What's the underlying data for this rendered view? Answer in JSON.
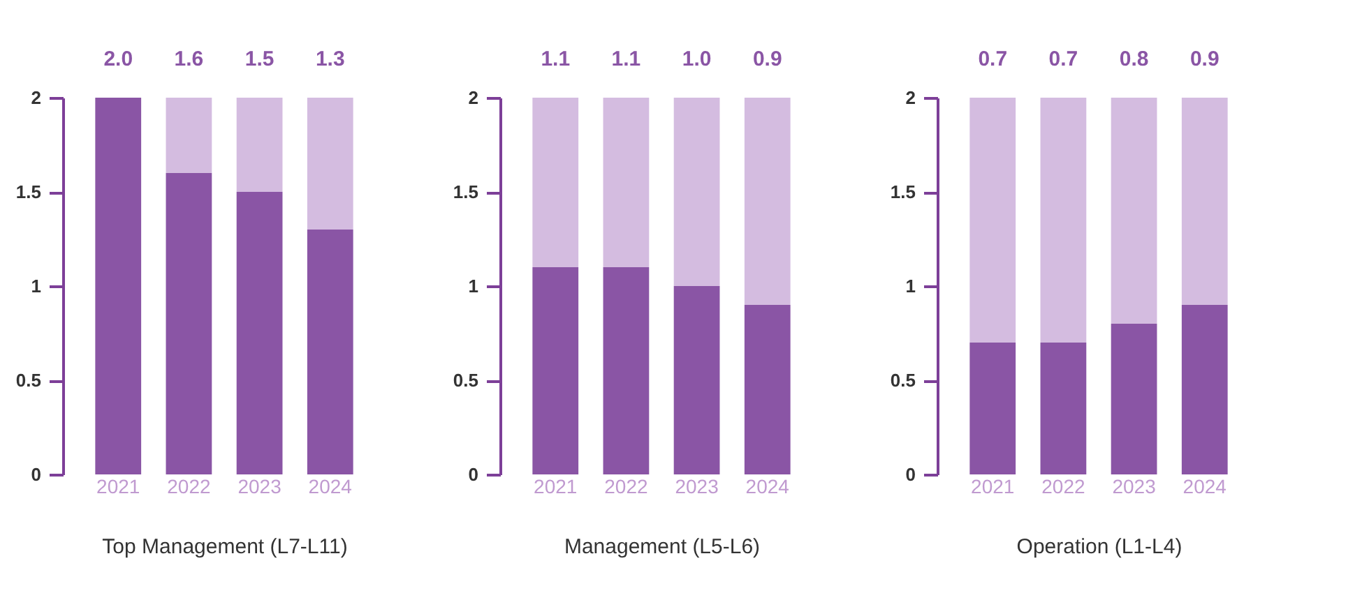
{
  "chart_data": [
    {
      "type": "bar",
      "stacked": true,
      "xlabel": "Top Management (L7-L11)",
      "categories": [
        "2021",
        "2022",
        "2023",
        "2024"
      ],
      "ylim": [
        0,
        2
      ],
      "yticks": [
        0,
        0.5,
        1,
        1.5,
        2
      ],
      "series": [
        {
          "color": "#8a55a5",
          "values": [
            2.0,
            1.6,
            1.5,
            1.3
          ],
          "value_labels": [
            "2.0",
            "1.6",
            "1.5",
            "1.3"
          ]
        },
        {
          "color": "#d4bce0",
          "values": [
            0,
            0.4,
            0.5,
            0.7
          ]
        }
      ]
    },
    {
      "type": "bar",
      "stacked": true,
      "xlabel": "Management (L5-L6)",
      "categories": [
        "2021",
        "2022",
        "2023",
        "2024"
      ],
      "ylim": [
        0,
        2
      ],
      "yticks": [
        0,
        0.5,
        1,
        1.5,
        2
      ],
      "series": [
        {
          "color": "#8a55a5",
          "values": [
            1.1,
            1.1,
            1.0,
            0.9
          ],
          "value_labels": [
            "1.1",
            "1.1",
            "1.0",
            "0.9"
          ]
        },
        {
          "color": "#d4bce0",
          "values": [
            0.9,
            0.9,
            1.0,
            1.1
          ]
        }
      ]
    },
    {
      "type": "bar",
      "stacked": true,
      "xlabel": "Operation (L1-L4)",
      "categories": [
        "2021",
        "2022",
        "2023",
        "2024"
      ],
      "ylim": [
        0,
        2
      ],
      "yticks": [
        0,
        0.5,
        1,
        1.5,
        2
      ],
      "series": [
        {
          "color": "#8a55a5",
          "values": [
            0.7,
            0.7,
            0.8,
            0.9
          ],
          "value_labels": [
            "0.7",
            "0.7",
            "0.8",
            "0.9"
          ]
        },
        {
          "color": "#d4bce0",
          "values": [
            1.3,
            1.3,
            1.2,
            1.1
          ]
        }
      ]
    }
  ]
}
